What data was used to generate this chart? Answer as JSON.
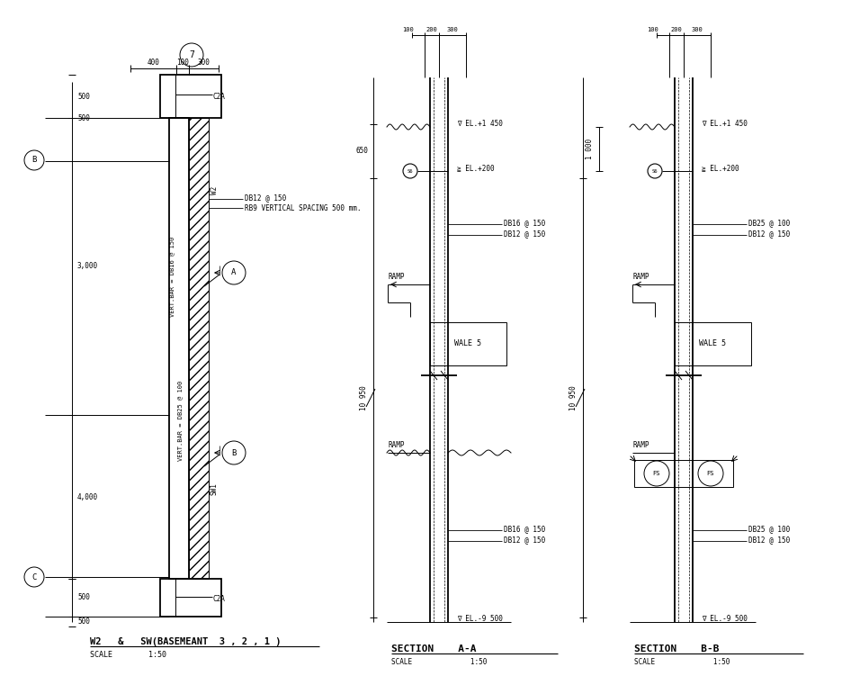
{
  "bg_color": "#ffffff",
  "line_color": "#000000",
  "title": "W2   &   SW(BASEMEANT  3 , 2 , 1 )",
  "scale_label": "SCALE        1:50",
  "section_aa_title": "SECTION    A-A",
  "section_aa_scale": "SCALE              1:50",
  "section_bb_title": "SECTION    B-B",
  "section_bb_scale": "SCALE              1:50"
}
